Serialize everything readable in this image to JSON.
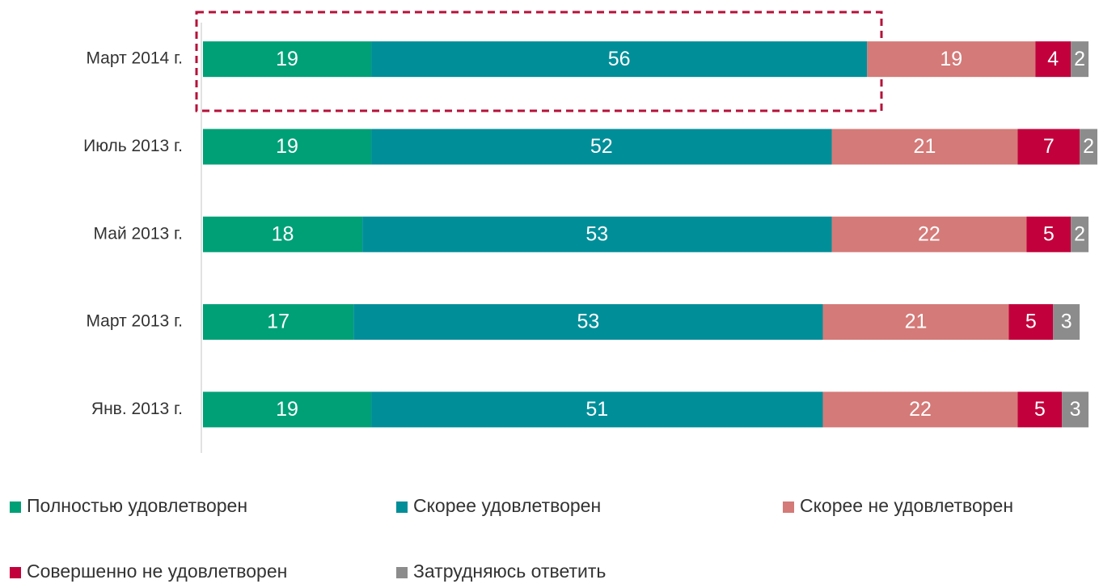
{
  "chart_data": {
    "type": "stacked_barh",
    "categories": [
      "Март 2014 г.",
      "Июль 2013 г.",
      "Май 2013 г.",
      "Март 2013 г.",
      "Янв. 2013 г."
    ],
    "series": [
      {
        "name": "Полностью удовлетворен",
        "color": "#00a077",
        "values": [
          19,
          19,
          18,
          17,
          19
        ]
      },
      {
        "name": "Скорее удовлетворен",
        "color": "#008e99",
        "values": [
          56,
          52,
          53,
          53,
          51
        ]
      },
      {
        "name": "Скорее не удовлетворен",
        "color": "#d47a78",
        "values": [
          19,
          21,
          22,
          21,
          22
        ]
      },
      {
        "name": "Совершенно не удовлетворен",
        "color": "#c2003c",
        "values": [
          4,
          7,
          5,
          5,
          5
        ]
      },
      {
        "name": "Затрудняюсь ответить",
        "color": "#8c8c8c",
        "values": [
          2,
          2,
          2,
          3,
          3
        ]
      }
    ]
  }
}
